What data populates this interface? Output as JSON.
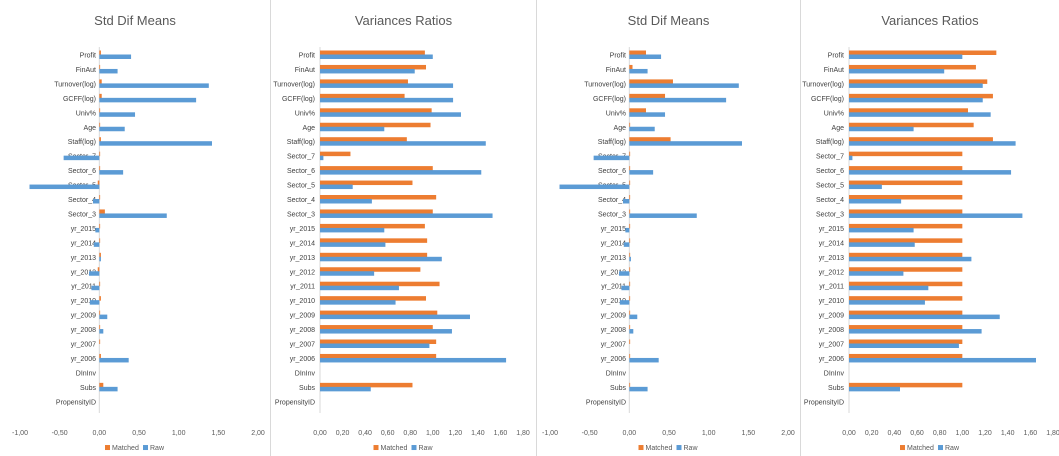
{
  "colors": {
    "matched": "#ED7D31",
    "raw": "#5B9BD5",
    "axis": "#d9d9d9",
    "divider": "#d9d9d9"
  },
  "chart_data": [
    {
      "type": "bar",
      "orientation": "horizontal",
      "title": "Std Dif Means",
      "categories": [
        "Profit",
        "FinAut",
        "Turnover(log)",
        "GCFF(log)",
        "Univ%",
        "Age",
        "Staff(log)",
        "Sector_7",
        "Sector_6",
        "Sector_5",
        "Sector_4",
        "Sector_3",
        "yr_2015",
        "yr_2014",
        "yr_2013",
        "yr_2012",
        "yr_2011",
        "yr_2010",
        "yr_2009",
        "yr_2008",
        "yr_2007",
        "yr_2006",
        "DInInv",
        "Subs",
        "PropensityID"
      ],
      "series": [
        {
          "name": "Matched",
          "values": [
            0.02,
            0.01,
            0.03,
            0.03,
            0.01,
            0.01,
            0.02,
            0.01,
            0.01,
            -0.02,
            0.01,
            0.07,
            0.01,
            0.01,
            0.02,
            -0.02,
            0.01,
            0.02,
            0.01,
            0.01,
            0.01,
            0.02,
            0,
            0.05,
            0
          ]
        },
        {
          "name": "Raw",
          "values": [
            0.4,
            0.23,
            1.38,
            1.22,
            0.45,
            0.32,
            1.42,
            -0.45,
            0.3,
            -0.88,
            -0.08,
            0.85,
            -0.05,
            -0.07,
            0.02,
            -0.13,
            -0.1,
            -0.12,
            0.1,
            0.05,
            0,
            0.37,
            0,
            0.23,
            0
          ]
        }
      ],
      "xlim": [
        -1.0,
        2.0
      ],
      "xticks": [
        "-1,00",
        "-0,50",
        "0,00",
        "0,50",
        "1,00",
        "1,50",
        "2,00"
      ],
      "legend": {
        "position": "bottom",
        "items": [
          "Matched",
          "Raw"
        ]
      }
    },
    {
      "type": "bar",
      "orientation": "horizontal",
      "title": "Variances Ratios",
      "categories": [
        "Profit",
        "FinAut",
        "Turnover(log)",
        "GCFF(log)",
        "Univ%",
        "Age",
        "Staff(log)",
        "Sector_7",
        "Sector_6",
        "Sector_5",
        "Sector_4",
        "Sector_3",
        "yr_2015",
        "yr_2014",
        "yr_2013",
        "yr_2012",
        "yr_2011",
        "yr_2010",
        "yr_2009",
        "yr_2008",
        "yr_2007",
        "yr_2006",
        "DInInv",
        "Subs",
        "PropensityID"
      ],
      "series": [
        {
          "name": "Matched",
          "values": [
            0.93,
            0.94,
            0.78,
            0.75,
            0.99,
            0.98,
            0.77,
            0.27,
            1.0,
            0.82,
            1.03,
            1.0,
            0.93,
            0.95,
            0.95,
            0.89,
            1.06,
            0.94,
            1.04,
            1.0,
            1.03,
            1.03,
            0,
            0.82,
            0
          ]
        },
        {
          "name": "Raw",
          "values": [
            1.0,
            0.84,
            1.18,
            1.18,
            1.25,
            0.57,
            1.47,
            0.03,
            1.43,
            0.29,
            0.46,
            1.53,
            0.57,
            0.58,
            1.08,
            0.48,
            0.7,
            0.67,
            1.33,
            1.17,
            0.97,
            1.65,
            0,
            0.45,
            0
          ]
        }
      ],
      "xlim": [
        0,
        1.8
      ],
      "xticks": [
        "0,00",
        "0,20",
        "0,40",
        "0,60",
        "0,80",
        "1,00",
        "1,20",
        "1,40",
        "1,60",
        "1,80"
      ],
      "legend": {
        "position": "bottom",
        "items": [
          "Matched",
          "Raw"
        ]
      }
    },
    {
      "type": "bar",
      "orientation": "horizontal",
      "title": "Std Dif Means",
      "categories": [
        "Profit",
        "FinAut",
        "Turnover(log)",
        "GCFF(log)",
        "Univ%",
        "Age",
        "Staff(log)",
        "Sector_7",
        "Sector_6",
        "Sector_5",
        "Sector_4",
        "Sector_3",
        "yr_2015",
        "yr_2014",
        "yr_2013",
        "yr_2012",
        "yr_2011",
        "yr_2010",
        "yr_2009",
        "yr_2008",
        "yr_2007",
        "yr_2006",
        "DInInv",
        "Subs",
        "PropensityID"
      ],
      "series": [
        {
          "name": "Matched",
          "values": [
            0.21,
            0.04,
            0.55,
            0.45,
            0.21,
            0.01,
            0.52,
            0.01,
            0.01,
            0.01,
            0.01,
            0.01,
            0.01,
            0.01,
            0.01,
            0.01,
            0.01,
            0.01,
            0.01,
            0.01,
            0.01,
            0.01,
            0,
            0.01,
            0
          ]
        },
        {
          "name": "Raw",
          "values": [
            0.4,
            0.23,
            1.38,
            1.22,
            0.45,
            0.32,
            1.42,
            -0.45,
            0.3,
            -0.88,
            -0.08,
            0.85,
            -0.05,
            -0.07,
            0.02,
            -0.13,
            -0.1,
            -0.12,
            0.1,
            0.05,
            0,
            0.37,
            0,
            0.23,
            0
          ]
        }
      ],
      "xlim": [
        -1.0,
        2.0
      ],
      "xticks": [
        "-1,00",
        "-0,50",
        "0,00",
        "0,50",
        "1,00",
        "1,50",
        "2,00"
      ],
      "legend": {
        "position": "bottom",
        "items": [
          "Matched",
          "Raw"
        ]
      }
    },
    {
      "type": "bar",
      "orientation": "horizontal",
      "title": "Variances Ratios",
      "categories": [
        "Profit",
        "FinAut",
        "Turnover(log)",
        "GCFF(log)",
        "Univ%",
        "Age",
        "Staff(log)",
        "Sector_7",
        "Sector_6",
        "Sector_5",
        "Sector_4",
        "Sector_3",
        "yr_2015",
        "yr_2014",
        "yr_2013",
        "yr_2012",
        "yr_2011",
        "yr_2010",
        "yr_2009",
        "yr_2008",
        "yr_2007",
        "yr_2006",
        "DInInv",
        "Subs",
        "PropensityID"
      ],
      "series": [
        {
          "name": "Matched",
          "values": [
            1.3,
            1.12,
            1.22,
            1.27,
            1.05,
            1.1,
            1.27,
            1.0,
            1.0,
            1.0,
            1.0,
            1.0,
            1.0,
            1.0,
            1.0,
            1.0,
            1.0,
            1.0,
            1.0,
            1.0,
            1.0,
            1.0,
            0,
            1.0,
            0
          ]
        },
        {
          "name": "Raw",
          "values": [
            1.0,
            0.84,
            1.18,
            1.18,
            1.25,
            0.57,
            1.47,
            0.03,
            1.43,
            0.29,
            0.46,
            1.53,
            0.57,
            0.58,
            1.08,
            0.48,
            0.7,
            0.67,
            1.33,
            1.17,
            0.97,
            1.65,
            0,
            0.45,
            0
          ]
        }
      ],
      "xlim": [
        0,
        1.8
      ],
      "xticks": [
        "0,00",
        "0,20",
        "0,40",
        "0,60",
        "0,80",
        "1,00",
        "1,20",
        "1,40",
        "1,60",
        "1,80"
      ],
      "legend": {
        "position": "bottom",
        "items": [
          "Matched",
          "Raw"
        ]
      }
    }
  ]
}
